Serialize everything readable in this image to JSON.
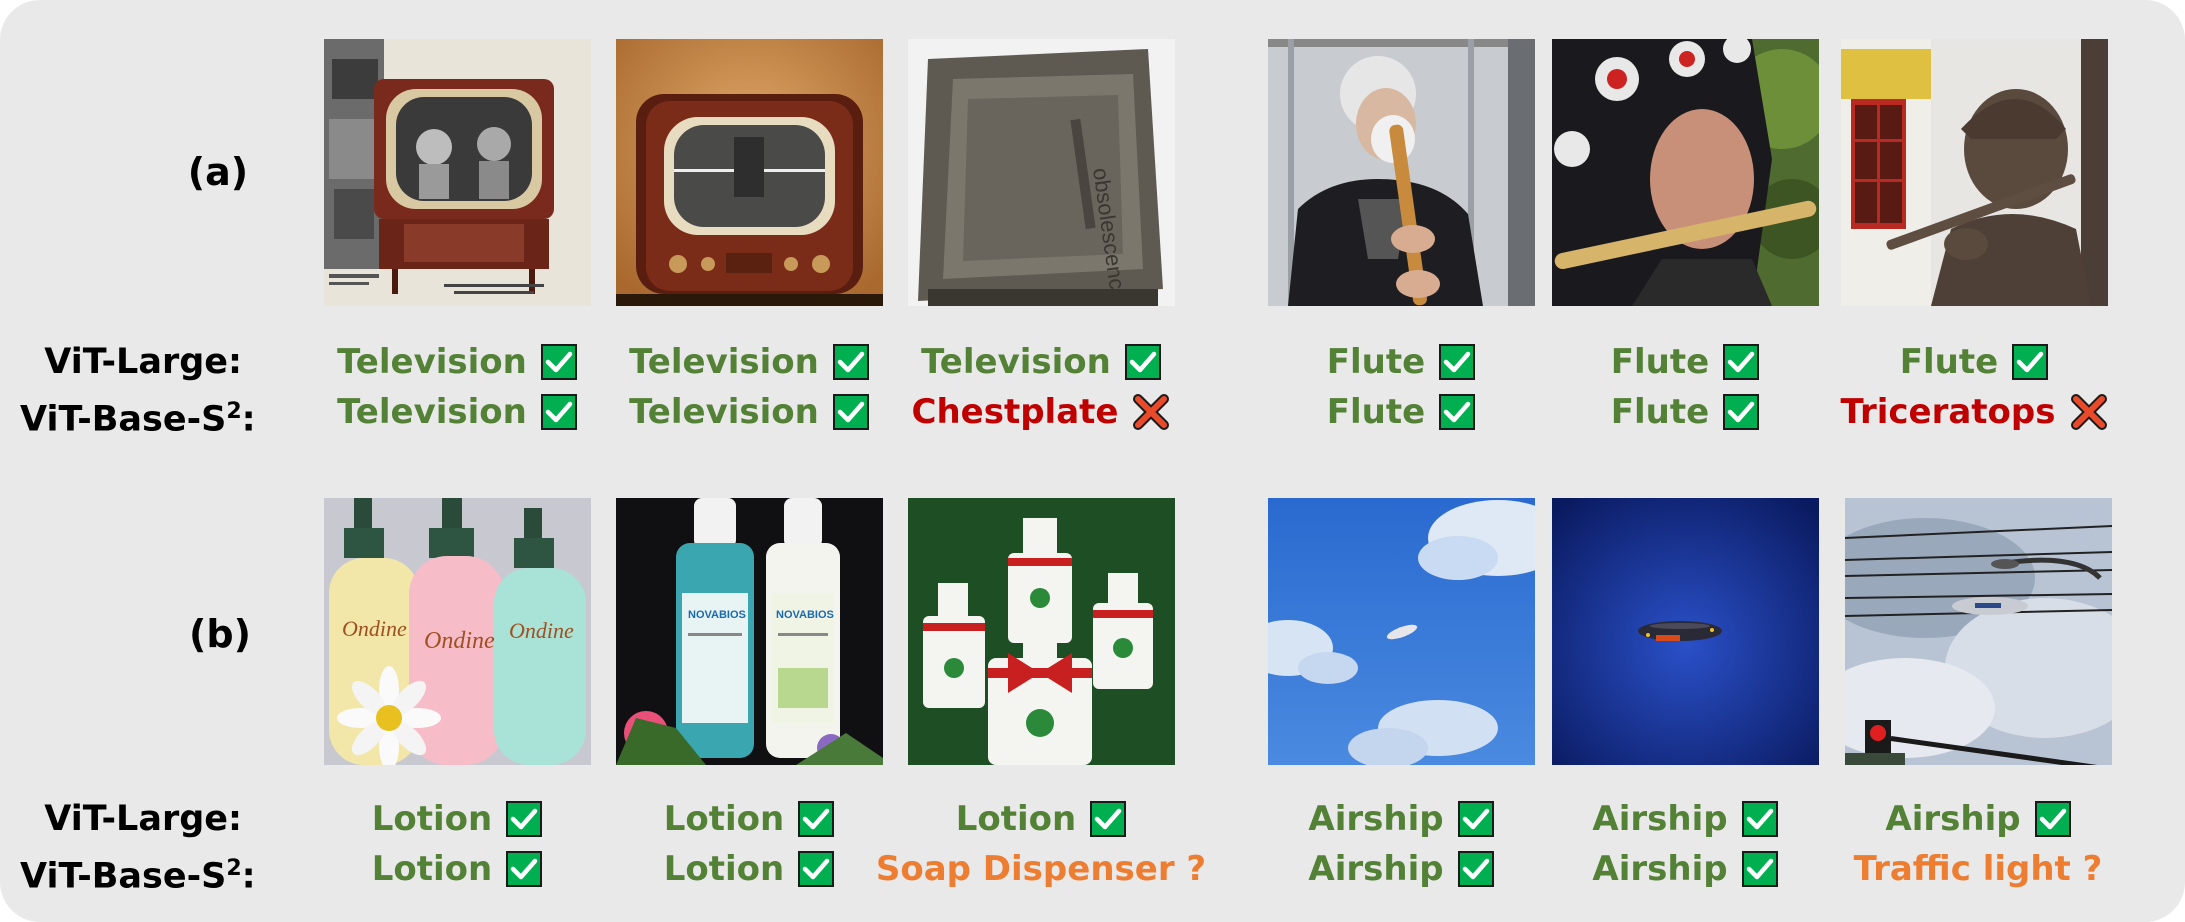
{
  "colors": {
    "correct": "#538135",
    "wrong": "#c00000",
    "uncertain": "#ed7d31",
    "check_fill": "#00b050"
  },
  "model_names": {
    "large": "ViT-Large:",
    "base_prefix": "ViT-Base-S",
    "base_sup": "2",
    "base_suffix": ":"
  },
  "rows": [
    {
      "label": "(a)",
      "items": [
        {
          "image": "vintage-television-console",
          "large": "Television",
          "large_mark": "check",
          "base": "Television",
          "base_mark": "check",
          "base_status": "correct"
        },
        {
          "image": "retro-television-set",
          "large": "Television",
          "large_mark": "check",
          "base": "Television",
          "base_mark": "check",
          "base_status": "correct"
        },
        {
          "image": "crt-monitor-closeup",
          "large": "Television",
          "large_mark": "check",
          "base": "Chestplate",
          "base_mark": "cross",
          "base_status": "wrong"
        },
        {
          "image": "man-playing-wooden-flute",
          "large": "Flute",
          "large_mark": "check",
          "base": "Flute",
          "base_mark": "check",
          "base_status": "correct"
        },
        {
          "image": "woman-playing-bamboo-flute",
          "large": "Flute",
          "large_mark": "check",
          "base": "Flute",
          "base_mark": "check",
          "base_status": "correct"
        },
        {
          "image": "metal-statue-with-flute",
          "large": "Flute",
          "large_mark": "check",
          "base": "Triceratops",
          "base_mark": "cross",
          "base_status": "wrong"
        }
      ]
    },
    {
      "label": "(b)",
      "items": [
        {
          "image": "lotion-bottles-with-flower",
          "large": "Lotion",
          "large_mark": "check",
          "base": "Lotion",
          "base_mark": "check",
          "base_status": "correct"
        },
        {
          "image": "two-lotion-bottles",
          "large": "Lotion",
          "large_mark": "check",
          "base": "Lotion",
          "base_mark": "check",
          "base_status": "correct"
        },
        {
          "image": "soap-dispensers-with-ribbons",
          "large": "Lotion",
          "large_mark": "check",
          "base": "Soap Dispenser ?",
          "base_mark": "none",
          "base_status": "uncertain"
        },
        {
          "image": "small-airship-in-sky",
          "large": "Airship",
          "large_mark": "check",
          "base": "Airship",
          "base_mark": "check",
          "base_status": "correct"
        },
        {
          "image": "lit-airship-in-dark-sky",
          "large": "Airship",
          "large_mark": "check",
          "base": "Airship",
          "base_mark": "check",
          "base_status": "correct"
        },
        {
          "image": "airship-and-traffic-light",
          "large": "Airship",
          "large_mark": "check",
          "base": "Traffic light ?",
          "base_mark": "none",
          "base_status": "uncertain"
        }
      ]
    }
  ]
}
